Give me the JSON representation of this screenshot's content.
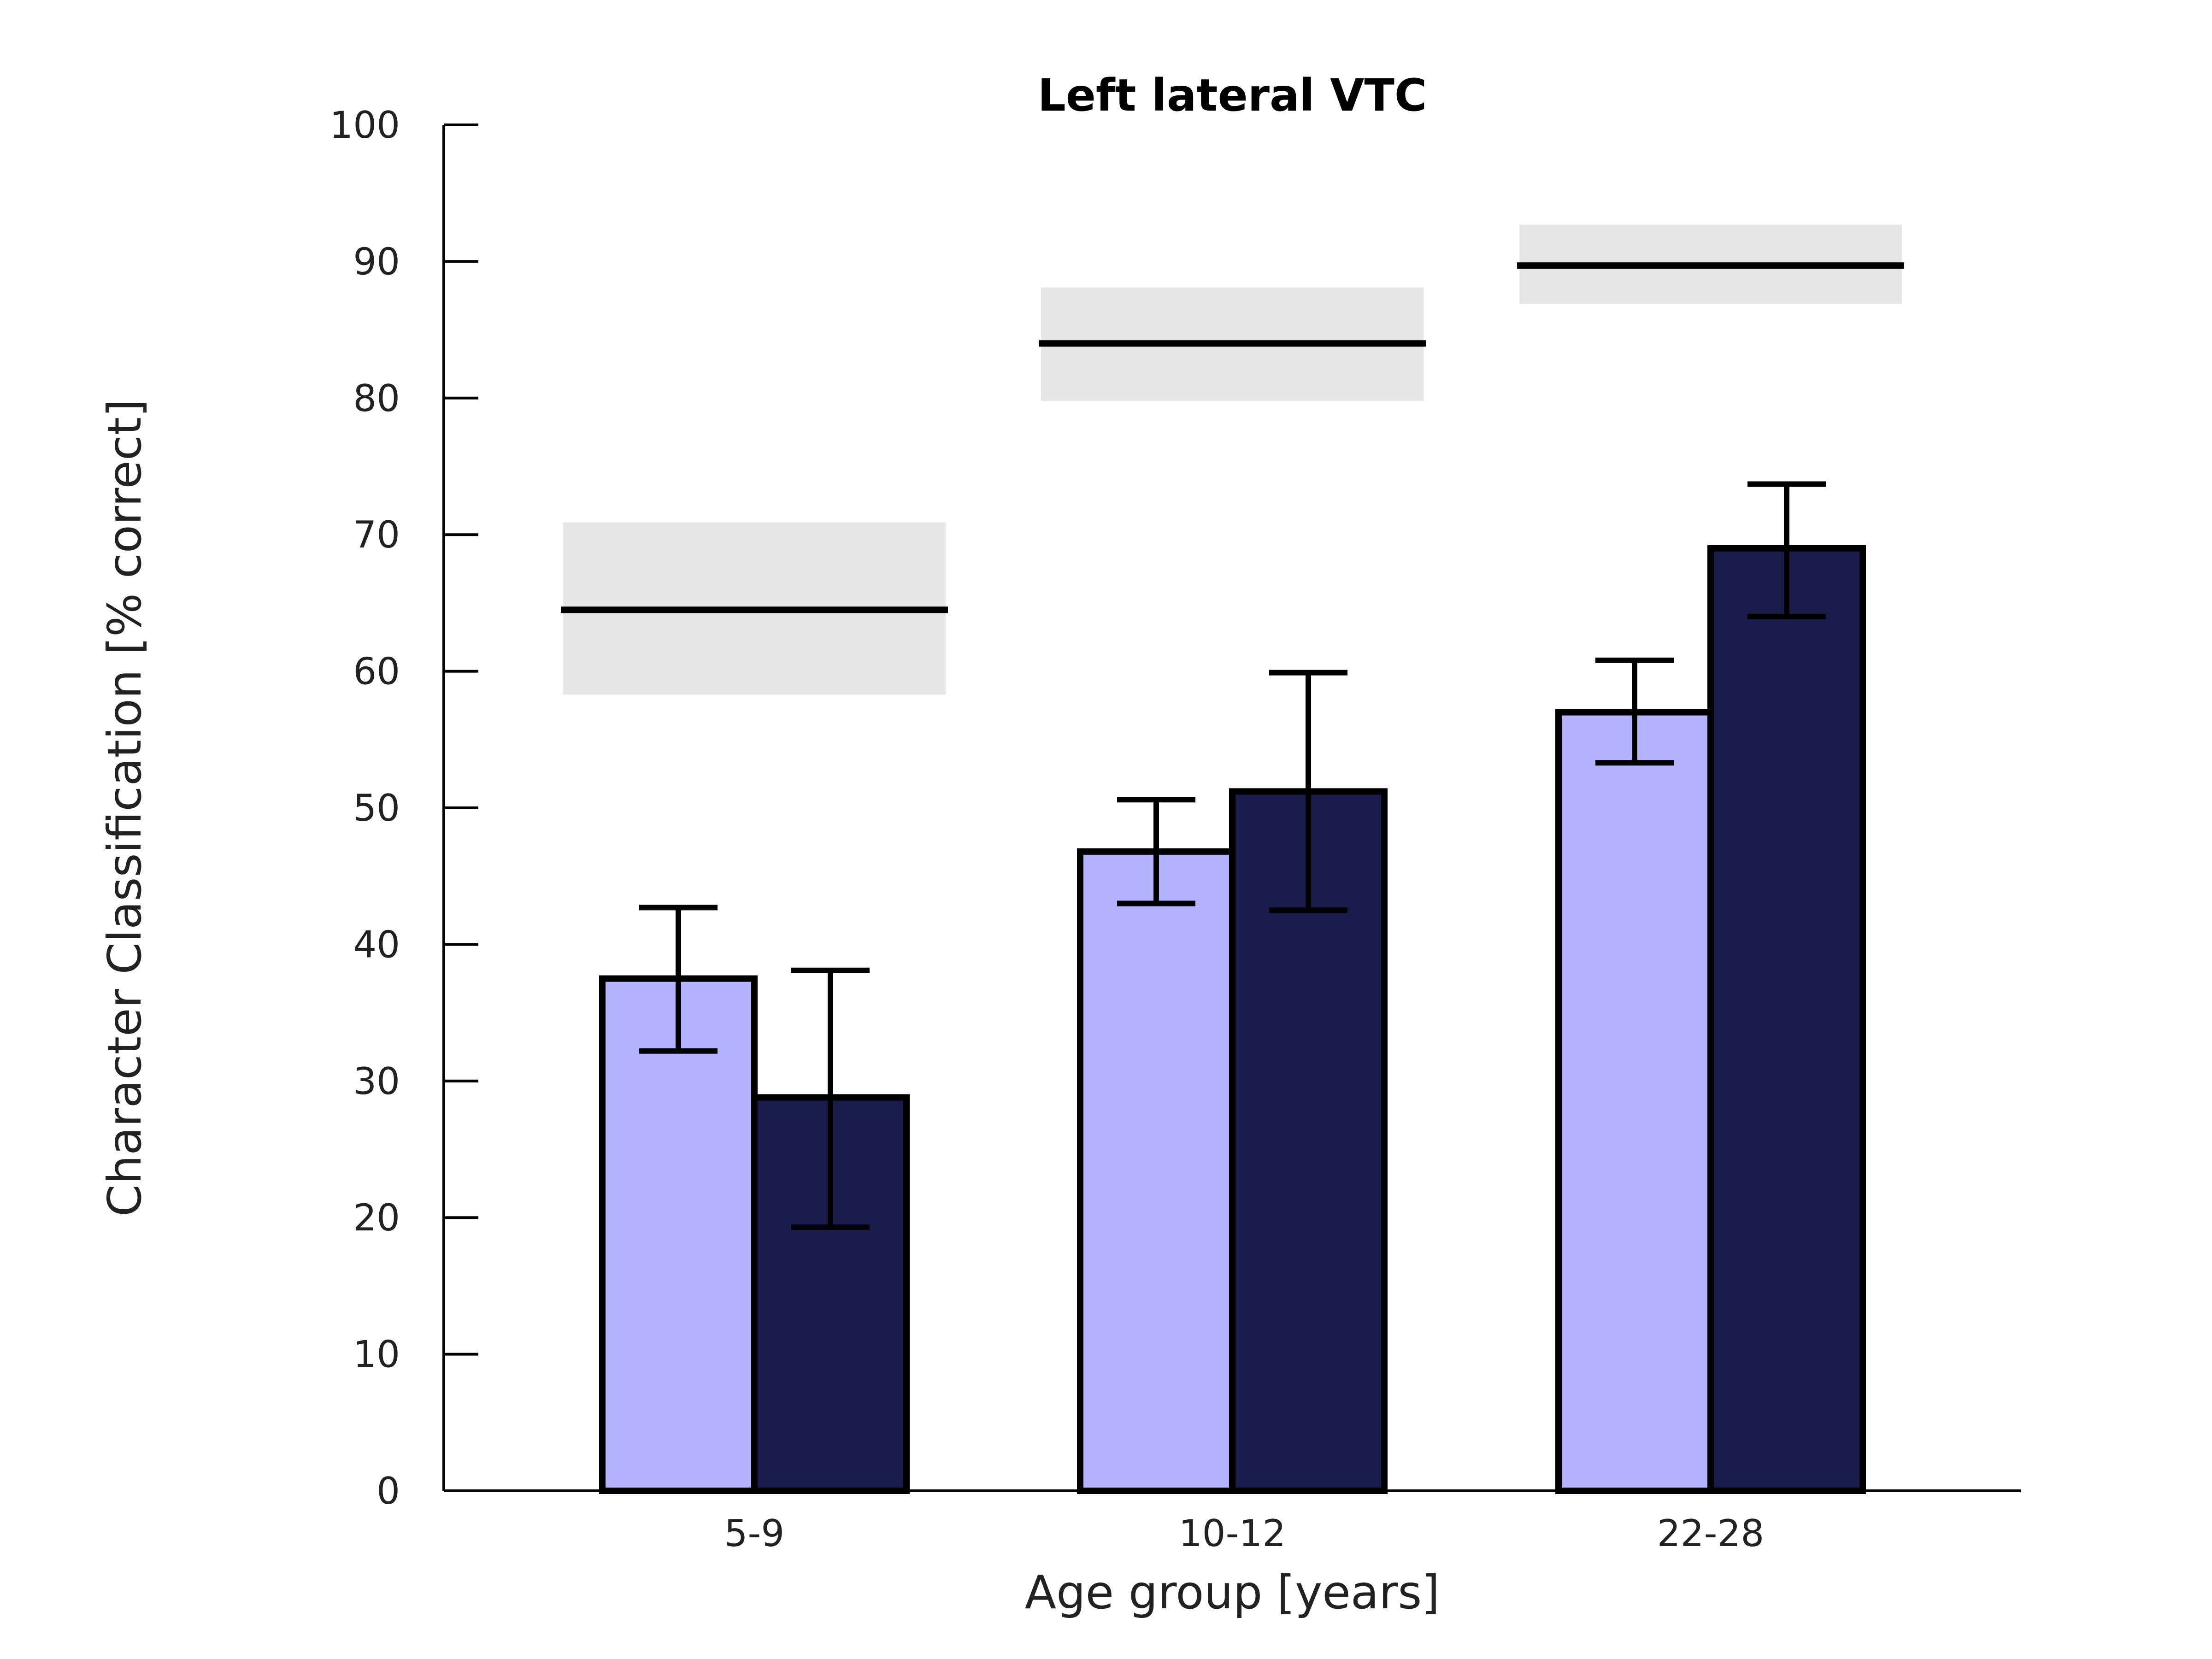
{
  "chart_data": {
    "type": "bar",
    "title": "Left lateral VTC",
    "xlabel": "Age group [years]",
    "ylabel": "Character Classification [% correct]",
    "ylim": [
      0,
      100
    ],
    "yticks": [
      "0",
      "10",
      "20",
      "30",
      "40",
      "50",
      "60",
      "70",
      "80",
      "90",
      "100"
    ],
    "categories": [
      "5-9",
      "10-12",
      "22-28"
    ],
    "series": [
      {
        "color": "#b3b3ff",
        "values": [
          37.5,
          46.8,
          57.0
        ],
        "err_low": [
          32.2,
          43.0,
          53.3
        ],
        "err_high": [
          42.7,
          50.6,
          60.8
        ]
      },
      {
        "color": "#1c1c4c",
        "values": [
          28.8,
          51.2,
          69.0
        ],
        "err_low": [
          19.3,
          42.5,
          64.0
        ],
        "err_high": [
          38.1,
          59.9,
          73.7
        ]
      }
    ],
    "reference": {
      "band_color": "#e5e5e5",
      "line_color": "#000000",
      "mean": [
        64.5,
        84.0,
        89.7
      ],
      "band_low": [
        58.3,
        79.8,
        86.9
      ],
      "band_high": [
        70.9,
        88.1,
        92.7
      ]
    },
    "grid": false,
    "legend": "none"
  }
}
